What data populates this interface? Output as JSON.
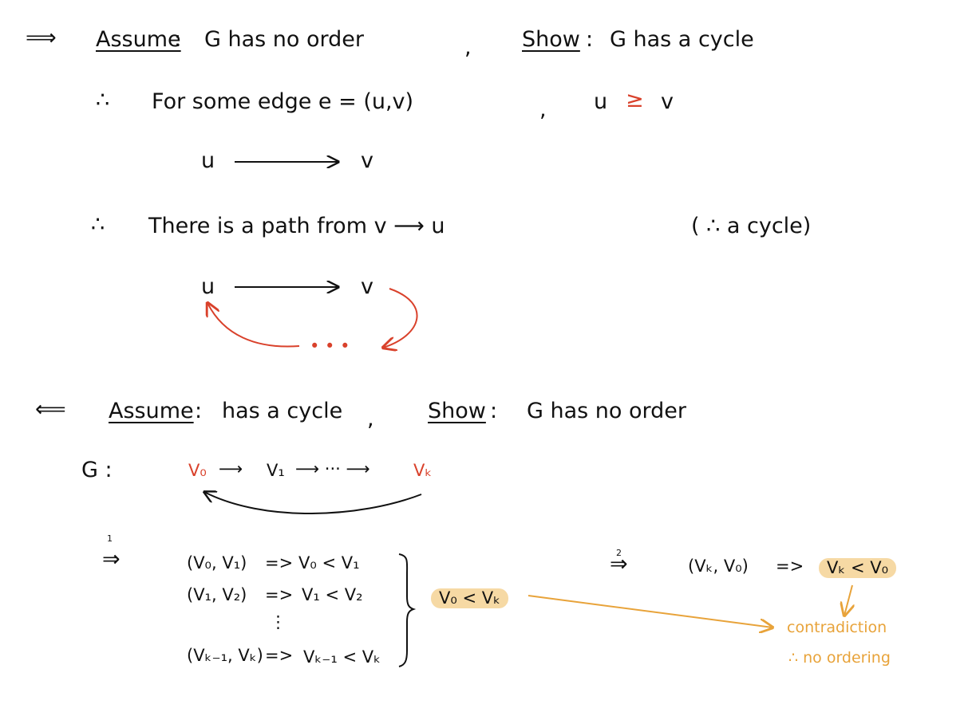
{
  "forward": {
    "arrow": "⟹",
    "assume_label": "Assume",
    "colon": ":",
    "assume_text": "G has no order",
    "comma": ",",
    "show_label": "Show",
    "show_text": "G has a cycle",
    "therefore1": "∴",
    "line1": "For some edge e = (u,v)",
    "comma2": ",",
    "cond_u": "u",
    "cond_ge": "≥",
    "cond_v": "v",
    "d1_u": "u",
    "d1_v": "v",
    "therefore2": "∴",
    "line2": "There is a path from v ⟶ u",
    "line2_paren": "( ∴ a cycle)",
    "d2_u": "u",
    "d2_v": "v",
    "dots": "• • •"
  },
  "backward": {
    "arrow": "⟸",
    "assume_label": "Assume",
    "colon": ":",
    "assume_text": "has a cycle",
    "comma": ",",
    "show_label": "Show",
    "show_text": "G has no order",
    "g_label": "G :",
    "v0": "V₀",
    "arrow1": "⟶",
    "v1": "V₁",
    "arrow2": "⟶ ··· ⟶",
    "vk": "Vₖ",
    "step1_num": "1",
    "step1_arrow": "⇒",
    "rows": [
      {
        "pair": "(V₀, V₁)",
        "imp": "=>",
        "rel": "V₀ < V₁"
      },
      {
        "pair": "(V₁, V₂)",
        "imp": "=>",
        "rel": "V₁ < V₂"
      },
      {
        "pair": "(Vₖ₋₁, Vₖ)",
        "imp": "=>",
        "rel": "Vₖ₋₁ < Vₖ"
      }
    ],
    "vdots": "⋮",
    "summary": "V₀ < Vₖ",
    "step2_num": "2",
    "step2_arrow": "⇒",
    "step2_pair": "(Vₖ, V₀)",
    "step2_imp": "=>",
    "step2_rel": "Vₖ < V₀",
    "contradiction": "contradiction",
    "conclusion": "∴ no ordering"
  }
}
